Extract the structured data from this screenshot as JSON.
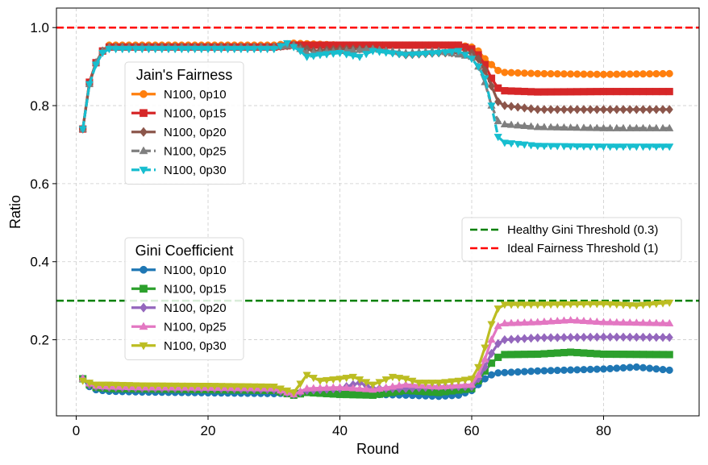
{
  "chart_data": {
    "type": "line",
    "xlabel": "Round",
    "ylabel": "Ratio",
    "xlim": [
      -3,
      94.5
    ],
    "ylim": [
      0.005,
      1.05
    ],
    "xticks": [
      0,
      20,
      40,
      60,
      80
    ],
    "yticks": [
      0.2,
      0.4,
      0.6,
      0.8,
      1.0
    ],
    "grid": true,
    "reference_lines": [
      {
        "label": "Healthy Gini Threshold (0.3)",
        "y": 0.3,
        "color": "#008000"
      },
      {
        "label": "Ideal Fairness Threshold (1)",
        "y": 1.0,
        "color": "#ff0000"
      }
    ],
    "legends": [
      {
        "title": "Jain's Fairness",
        "placement": "upper-left",
        "group": "jain"
      },
      {
        "title": "Gini Coefficient",
        "placement": "center-left",
        "group": "gini"
      },
      {
        "title": "",
        "placement": "center-right",
        "group": "threshold"
      }
    ],
    "series": [
      {
        "name": "N100, 0p10",
        "group": "jain",
        "color": "#ff7f0e",
        "marker": "circle",
        "dash": "solid",
        "points": [
          [
            1,
            0.74
          ],
          [
            2,
            0.86
          ],
          [
            3,
            0.91
          ],
          [
            4,
            0.94
          ],
          [
            5,
            0.955
          ],
          [
            10,
            0.955
          ],
          [
            20,
            0.955
          ],
          [
            30,
            0.955
          ],
          [
            33,
            0.96
          ],
          [
            40,
            0.955
          ],
          [
            50,
            0.955
          ],
          [
            58,
            0.955
          ],
          [
            60,
            0.95
          ],
          [
            61,
            0.94
          ],
          [
            62,
            0.92
          ],
          [
            63,
            0.905
          ],
          [
            64,
            0.89
          ],
          [
            65,
            0.885
          ],
          [
            70,
            0.882
          ],
          [
            80,
            0.88
          ],
          [
            90,
            0.882
          ]
        ]
      },
      {
        "name": "N100, 0p15",
        "group": "jain",
        "color": "#d62728",
        "marker": "square",
        "dash": "solid",
        "points": [
          [
            1,
            0.74
          ],
          [
            2,
            0.86
          ],
          [
            3,
            0.91
          ],
          [
            4,
            0.94
          ],
          [
            5,
            0.95
          ],
          [
            10,
            0.95
          ],
          [
            20,
            0.95
          ],
          [
            30,
            0.95
          ],
          [
            33,
            0.955
          ],
          [
            40,
            0.955
          ],
          [
            48,
            0.955
          ],
          [
            50,
            0.955
          ],
          [
            58,
            0.955
          ],
          [
            60,
            0.945
          ],
          [
            61,
            0.93
          ],
          [
            62,
            0.905
          ],
          [
            63,
            0.87
          ],
          [
            64,
            0.845
          ],
          [
            65,
            0.838
          ],
          [
            70,
            0.835
          ],
          [
            80,
            0.836
          ],
          [
            90,
            0.836
          ]
        ]
      },
      {
        "name": "N100, 0p20",
        "group": "jain",
        "color": "#8c564b",
        "marker": "diamond",
        "dash": "solid",
        "points": [
          [
            1,
            0.74
          ],
          [
            2,
            0.855
          ],
          [
            3,
            0.91
          ],
          [
            4,
            0.94
          ],
          [
            5,
            0.95
          ],
          [
            10,
            0.95
          ],
          [
            20,
            0.95
          ],
          [
            30,
            0.95
          ],
          [
            33,
            0.955
          ],
          [
            36,
            0.94
          ],
          [
            40,
            0.945
          ],
          [
            45,
            0.945
          ],
          [
            50,
            0.93
          ],
          [
            55,
            0.935
          ],
          [
            60,
            0.935
          ],
          [
            61,
            0.92
          ],
          [
            62,
            0.89
          ],
          [
            63,
            0.85
          ],
          [
            64,
            0.81
          ],
          [
            65,
            0.8
          ],
          [
            70,
            0.79
          ],
          [
            80,
            0.79
          ],
          [
            90,
            0.79
          ]
        ]
      },
      {
        "name": "N100, 0p25",
        "group": "jain",
        "color": "#7f7f7f",
        "marker": "triangle-up",
        "dash": "dashed",
        "points": [
          [
            1,
            0.74
          ],
          [
            2,
            0.855
          ],
          [
            3,
            0.91
          ],
          [
            4,
            0.94
          ],
          [
            5,
            0.95
          ],
          [
            10,
            0.95
          ],
          [
            20,
            0.95
          ],
          [
            30,
            0.95
          ],
          [
            33,
            0.955
          ],
          [
            35,
            0.935
          ],
          [
            40,
            0.94
          ],
          [
            45,
            0.945
          ],
          [
            50,
            0.935
          ],
          [
            55,
            0.94
          ],
          [
            60,
            0.925
          ],
          [
            61,
            0.9
          ],
          [
            62,
            0.86
          ],
          [
            63,
            0.8
          ],
          [
            64,
            0.76
          ],
          [
            65,
            0.752
          ],
          [
            70,
            0.745
          ],
          [
            80,
            0.742
          ],
          [
            90,
            0.742
          ]
        ]
      },
      {
        "name": "N100, 0p30",
        "group": "jain",
        "color": "#17becf",
        "marker": "triangle-down",
        "dash": "dashed",
        "points": [
          [
            1,
            0.74
          ],
          [
            2,
            0.855
          ],
          [
            3,
            0.905
          ],
          [
            4,
            0.935
          ],
          [
            5,
            0.945
          ],
          [
            10,
            0.945
          ],
          [
            20,
            0.945
          ],
          [
            30,
            0.945
          ],
          [
            32,
            0.96
          ],
          [
            34,
            0.94
          ],
          [
            35,
            0.925
          ],
          [
            37,
            0.93
          ],
          [
            40,
            0.935
          ],
          [
            43,
            0.925
          ],
          [
            45,
            0.94
          ],
          [
            50,
            0.93
          ],
          [
            55,
            0.935
          ],
          [
            58,
            0.94
          ],
          [
            60,
            0.92
          ],
          [
            61,
            0.9
          ],
          [
            62,
            0.87
          ],
          [
            63,
            0.8
          ],
          [
            64,
            0.72
          ],
          [
            65,
            0.705
          ],
          [
            70,
            0.697
          ],
          [
            80,
            0.695
          ],
          [
            90,
            0.695
          ]
        ]
      },
      {
        "name": "N100, 0p10",
        "group": "gini",
        "color": "#1f77b4",
        "marker": "circle",
        "dash": "solid",
        "points": [
          [
            1,
            0.1
          ],
          [
            2,
            0.08
          ],
          [
            3,
            0.072
          ],
          [
            5,
            0.068
          ],
          [
            10,
            0.066
          ],
          [
            20,
            0.064
          ],
          [
            30,
            0.062
          ],
          [
            35,
            0.065
          ],
          [
            40,
            0.062
          ],
          [
            45,
            0.06
          ],
          [
            50,
            0.058
          ],
          [
            55,
            0.055
          ],
          [
            58,
            0.058
          ],
          [
            60,
            0.07
          ],
          [
            61,
            0.085
          ],
          [
            62,
            0.1
          ],
          [
            63,
            0.11
          ],
          [
            64,
            0.115
          ],
          [
            70,
            0.12
          ],
          [
            80,
            0.125
          ],
          [
            85,
            0.13
          ],
          [
            90,
            0.122
          ]
        ]
      },
      {
        "name": "N100, 0p15",
        "group": "gini",
        "color": "#2ca02c",
        "marker": "square",
        "dash": "solid",
        "points": [
          [
            1,
            0.1
          ],
          [
            2,
            0.085
          ],
          [
            3,
            0.078
          ],
          [
            5,
            0.075
          ],
          [
            10,
            0.074
          ],
          [
            20,
            0.072
          ],
          [
            30,
            0.07
          ],
          [
            33,
            0.058
          ],
          [
            35,
            0.065
          ],
          [
            40,
            0.06
          ],
          [
            45,
            0.058
          ],
          [
            50,
            0.07
          ],
          [
            55,
            0.065
          ],
          [
            60,
            0.075
          ],
          [
            61,
            0.095
          ],
          [
            62,
            0.12
          ],
          [
            63,
            0.14
          ],
          [
            64,
            0.155
          ],
          [
            65,
            0.162
          ],
          [
            70,
            0.163
          ],
          [
            75,
            0.168
          ],
          [
            80,
            0.163
          ],
          [
            90,
            0.162
          ]
        ]
      },
      {
        "name": "N100, 0p20",
        "group": "gini",
        "color": "#9467bd",
        "marker": "diamond",
        "dash": "solid",
        "points": [
          [
            1,
            0.1
          ],
          [
            2,
            0.085
          ],
          [
            3,
            0.08
          ],
          [
            5,
            0.078
          ],
          [
            10,
            0.076
          ],
          [
            20,
            0.075
          ],
          [
            30,
            0.072
          ],
          [
            33,
            0.06
          ],
          [
            35,
            0.07
          ],
          [
            40,
            0.075
          ],
          [
            43,
            0.09
          ],
          [
            45,
            0.075
          ],
          [
            50,
            0.075
          ],
          [
            55,
            0.08
          ],
          [
            60,
            0.08
          ],
          [
            61,
            0.1
          ],
          [
            62,
            0.13
          ],
          [
            63,
            0.165
          ],
          [
            64,
            0.19
          ],
          [
            65,
            0.2
          ],
          [
            70,
            0.205
          ],
          [
            80,
            0.207
          ],
          [
            90,
            0.206
          ]
        ]
      },
      {
        "name": "N100, 0p25",
        "group": "gini",
        "color": "#e377c2",
        "marker": "triangle-up",
        "dash": "solid",
        "points": [
          [
            1,
            0.1
          ],
          [
            2,
            0.088
          ],
          [
            3,
            0.082
          ],
          [
            5,
            0.08
          ],
          [
            10,
            0.078
          ],
          [
            20,
            0.077
          ],
          [
            30,
            0.075
          ],
          [
            33,
            0.06
          ],
          [
            35,
            0.075
          ],
          [
            40,
            0.078
          ],
          [
            45,
            0.072
          ],
          [
            50,
            0.085
          ],
          [
            55,
            0.08
          ],
          [
            60,
            0.085
          ],
          [
            61,
            0.11
          ],
          [
            62,
            0.15
          ],
          [
            63,
            0.2
          ],
          [
            64,
            0.235
          ],
          [
            65,
            0.242
          ],
          [
            70,
            0.245
          ],
          [
            75,
            0.25
          ],
          [
            80,
            0.245
          ],
          [
            90,
            0.242
          ]
        ]
      },
      {
        "name": "N100, 0p30",
        "group": "gini",
        "color": "#bcbd22",
        "marker": "triangle-down",
        "dash": "solid",
        "points": [
          [
            1,
            0.095
          ],
          [
            2,
            0.09
          ],
          [
            3,
            0.085
          ],
          [
            5,
            0.085
          ],
          [
            10,
            0.083
          ],
          [
            20,
            0.082
          ],
          [
            30,
            0.08
          ],
          [
            33,
            0.065
          ],
          [
            35,
            0.11
          ],
          [
            37,
            0.095
          ],
          [
            40,
            0.1
          ],
          [
            42,
            0.105
          ],
          [
            45,
            0.085
          ],
          [
            48,
            0.105
          ],
          [
            50,
            0.1
          ],
          [
            52,
            0.09
          ],
          [
            55,
            0.09
          ],
          [
            58,
            0.095
          ],
          [
            60,
            0.1
          ],
          [
            61,
            0.13
          ],
          [
            62,
            0.18
          ],
          [
            63,
            0.24
          ],
          [
            64,
            0.28
          ],
          [
            65,
            0.29
          ],
          [
            70,
            0.29
          ],
          [
            80,
            0.292
          ],
          [
            85,
            0.288
          ],
          [
            90,
            0.295
          ]
        ]
      }
    ]
  }
}
